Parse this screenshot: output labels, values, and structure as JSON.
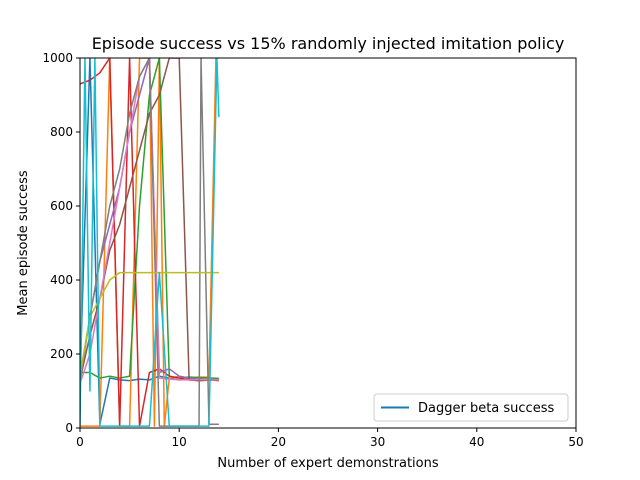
{
  "chart_data": {
    "type": "line",
    "title": "Episode success vs 15% randomly injected imitation policy",
    "xlabel": "Number of expert demonstrations",
    "ylabel": "Mean episode success",
    "xlim": [
      0,
      50
    ],
    "ylim": [
      0,
      1000
    ],
    "xticks": [
      0,
      10,
      20,
      30,
      40,
      50
    ],
    "yticks": [
      0,
      200,
      400,
      600,
      800,
      1000
    ],
    "grid": false,
    "legend": {
      "placement": "lower-right",
      "entries": [
        "Dagger beta success"
      ]
    },
    "series": [
      {
        "name": "Dagger beta success",
        "color": "#1f77b4",
        "x": [
          0,
          1,
          2,
          3,
          4,
          5,
          6,
          7,
          8,
          9,
          10,
          11,
          12,
          13,
          14
        ],
        "y": [
          130,
          1000,
          10,
          135,
          130,
          128,
          132,
          130,
          140,
          135,
          130,
          132,
          130,
          131,
          130
        ]
      },
      {
        "color": "#ff7f0e",
        "x": [
          0,
          1,
          2,
          3,
          4,
          5,
          6,
          7,
          7.5,
          8,
          8.5,
          9,
          10,
          11,
          12,
          13,
          13.7,
          14
        ],
        "y": [
          5,
          5,
          5,
          1000,
          5,
          5,
          1000,
          1000,
          5,
          1000,
          5,
          135,
          140,
          135,
          138,
          137,
          1000,
          1000
        ]
      },
      {
        "color": "#2ca02c",
        "x": [
          0,
          1,
          2,
          3,
          4,
          5,
          6,
          7,
          8,
          9,
          10,
          11,
          12,
          13,
          14
        ],
        "y": [
          150,
          150,
          135,
          140,
          135,
          140,
          600,
          900,
          1000,
          140,
          135,
          138,
          136,
          135,
          134
        ]
      },
      {
        "color": "#d62728",
        "x": [
          0,
          1,
          2,
          3,
          4,
          5,
          6,
          7,
          8,
          9,
          10,
          11,
          12,
          13,
          14
        ],
        "y": [
          930,
          940,
          960,
          1000,
          5,
          1000,
          5,
          150,
          160,
          140,
          135,
          130,
          128,
          130,
          128
        ]
      },
      {
        "color": "#9467bd",
        "x": [
          0,
          1,
          2,
          3,
          4,
          5,
          6,
          7,
          8,
          9,
          10,
          11,
          12,
          13,
          14
        ],
        "y": [
          140,
          300,
          450,
          550,
          650,
          800,
          900,
          1000,
          150,
          160,
          140,
          135,
          132,
          130,
          131
        ]
      },
      {
        "color": "#8c564b",
        "x": [
          0,
          1,
          2,
          3,
          4,
          5,
          6,
          7,
          8,
          9,
          10,
          11,
          12,
          13,
          14
        ],
        "y": [
          130,
          250,
          350,
          480,
          550,
          650,
          750,
          850,
          900,
          1000,
          1000,
          130,
          128,
          129,
          130
        ]
      },
      {
        "color": "#e377c2",
        "x": [
          0,
          1,
          2,
          3,
          4,
          5,
          6,
          7,
          8,
          9,
          10,
          11,
          12,
          13,
          14
        ],
        "y": [
          120,
          200,
          350,
          500,
          650,
          800,
          950,
          1000,
          135,
          132,
          130,
          130,
          131,
          130,
          130
        ]
      },
      {
        "color": "#7f7f7f",
        "x": [
          0,
          1,
          2,
          3,
          4,
          5,
          6,
          7,
          8,
          9,
          10,
          11,
          12,
          12.2,
          13,
          14
        ],
        "y": [
          125,
          300,
          450,
          600,
          700,
          850,
          950,
          1000,
          5,
          5,
          5,
          5,
          5,
          1000,
          10,
          10
        ]
      },
      {
        "color": "#bcbd22",
        "x": [
          0,
          1,
          2,
          3,
          4,
          5,
          6,
          7,
          8,
          9,
          10,
          11,
          12,
          13,
          14
        ],
        "y": [
          140,
          300,
          350,
          400,
          420,
          420,
          420,
          420,
          420,
          420,
          420,
          420,
          420,
          420,
          420
        ]
      },
      {
        "color": "#17becf",
        "x": [
          0,
          0.5,
          1,
          1.5,
          2,
          3,
          4,
          5,
          6,
          7,
          8,
          9,
          10,
          11,
          12,
          13,
          13.8,
          14
        ],
        "y": [
          5,
          1000,
          100,
          1000,
          5,
          5,
          5,
          5,
          5,
          5,
          420,
          5,
          5,
          5,
          5,
          5,
          1000,
          840
        ]
      }
    ]
  }
}
